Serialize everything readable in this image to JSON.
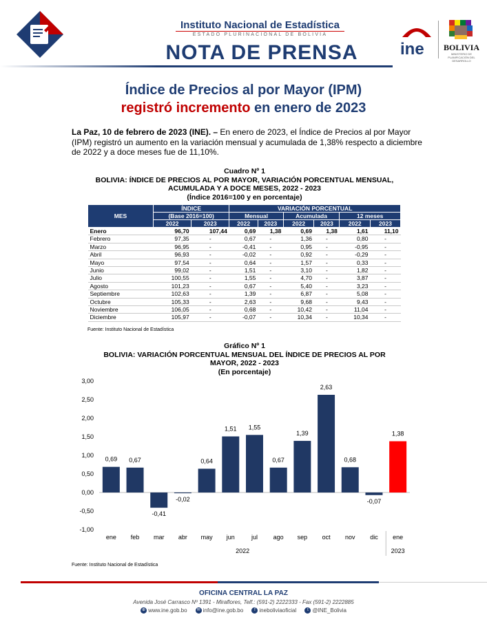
{
  "header": {
    "institution": "Instituto Nacional de Estadística",
    "subtitle": "ESTADO PLURINACIONAL DE BOLIVIA",
    "doc_type": "NOTA DE PRENSA",
    "ine_logo_text": "ine",
    "country_emblem_text": "BOLIVIA",
    "ministry_text": "MINISTERIO DE PLANIFICACIÓN DEL DESARROLLO"
  },
  "title": {
    "line1": "Índice de Precios al por Mayor (IPM)",
    "line2_red": "registró incremento",
    "line2_rest": " en enero de 2023"
  },
  "lead": {
    "bold": "La Paz, 10 de febrero de 2023 (INE). –",
    "text": " En enero de 2023, el Índice de Precios al por Mayor (IPM) registró un aumento en la variación mensual y acumulada de 1,38% respecto a diciembre de 2022 y a doce meses fue de 11,10%."
  },
  "table": {
    "number": "Cuadro Nº 1",
    "title1": "BOLIVIA: ÍNDICE DE PRECIOS AL POR MAYOR, VARIACIÓN PORCENTUAL MENSUAL,",
    "title2": "ACUMULADA Y A DOCE MESES, 2022 - 2023",
    "title3": "(Índice 2016=100 y en porcentaje)",
    "h_mes": "MES",
    "h_indice": "ÍNDICE",
    "h_base": "(Base 2016=100)",
    "h_var": "VARIACIÓN PORCENTUAL",
    "h_mensual": "Mensual",
    "h_acum": "Acumulada",
    "h_12": "12 meses",
    "y1": "2022",
    "y2": "2023",
    "rows": [
      [
        "Enero",
        "96,70",
        "107,44",
        "0,69",
        "1,38",
        "0,69",
        "1,38",
        "1,61",
        "11,10"
      ],
      [
        "Febrero",
        "97,35",
        "-",
        "0,67",
        "-",
        "1,36",
        "-",
        "0,80",
        "-"
      ],
      [
        "Marzo",
        "96,95",
        "-",
        "-0,41",
        "-",
        "0,95",
        "-",
        "-0,95",
        "-"
      ],
      [
        "Abril",
        "96,93",
        "-",
        "-0,02",
        "-",
        "0,92",
        "-",
        "-0,29",
        "-"
      ],
      [
        "Mayo",
        "97,54",
        "-",
        "0,64",
        "-",
        "1,57",
        "-",
        "0,33",
        "-"
      ],
      [
        "Junio",
        "99,02",
        "-",
        "1,51",
        "-",
        "3,10",
        "-",
        "1,82",
        "-"
      ],
      [
        "Julio",
        "100,55",
        "-",
        "1,55",
        "-",
        "4,70",
        "-",
        "3,87",
        "-"
      ],
      [
        "Agosto",
        "101,23",
        "-",
        "0,67",
        "-",
        "5,40",
        "-",
        "3,23",
        "-"
      ],
      [
        "Septiembre",
        "102,63",
        "-",
        "1,39",
        "-",
        "6,87",
        "-",
        "5,08",
        "-"
      ],
      [
        "Octubre",
        "105,33",
        "-",
        "2,63",
        "-",
        "9,68",
        "-",
        "9,43",
        "-"
      ],
      [
        "Noviembre",
        "106,05",
        "-",
        "0,68",
        "-",
        "10,42",
        "-",
        "11,04",
        "-"
      ],
      [
        "Diciembre",
        "105,97",
        "-",
        "-0,07",
        "-",
        "10,34",
        "-",
        "10,34",
        "-"
      ]
    ],
    "source": "Fuente: Instituto Nacional de Estadística"
  },
  "chart_data": {
    "type": "bar",
    "number": "Gráfico Nº 1",
    "title1": "BOLIVIA: VARIACIÓN PORCENTUAL MENSUAL DEL ÍNDICE DE PRECIOS AL POR",
    "title2": "MAYOR, 2022 - 2023",
    "subtitle": "(En porcentaje)",
    "categories": [
      "ene",
      "feb",
      "mar",
      "abr",
      "may",
      "jun",
      "jul",
      "ago",
      "sep",
      "oct",
      "nov",
      "dic",
      "ene"
    ],
    "values": [
      0.69,
      0.67,
      -0.41,
      -0.02,
      0.64,
      1.51,
      1.55,
      0.67,
      1.39,
      2.63,
      0.68,
      -0.07,
      1.38
    ],
    "labels": [
      "0,69",
      "0,67",
      "-0,41",
      "-0,02",
      "0,64",
      "1,51",
      "1,55",
      "0,67",
      "1,39",
      "2,63",
      "0,68",
      "-0,07",
      "1,38"
    ],
    "year_groups": [
      {
        "label": "2022",
        "count": 12
      },
      {
        "label": "2023",
        "count": 1
      }
    ],
    "yticks": [
      3.0,
      2.5,
      2.0,
      1.5,
      1.0,
      0.5,
      0.0,
      -0.5,
      -1.0
    ],
    "ytick_labels": [
      "3,00",
      "2,50",
      "2,00",
      "1,50",
      "1,00",
      "0,50",
      "0,00",
      "-0,50",
      "-1,00"
    ],
    "ylim": [
      -1.0,
      3.0
    ],
    "colors": {
      "2022": "#203864",
      "2023": "#ff0000"
    },
    "source": "Fuente: Instituto Nacional de Estadística"
  },
  "footer": {
    "office": "OFICINA CENTRAL LA PAZ",
    "address": "Avenida José Carrasco Nº 1391 - Miraflores, Telf.: (591-2) 2222333 - Fax (591-2) 2222885",
    "web": "www.ine.gob.bo",
    "email": "info@ine.gob.bo",
    "facebook": "ineboliviaoficial",
    "twitter": "@INE_Bolivia"
  }
}
